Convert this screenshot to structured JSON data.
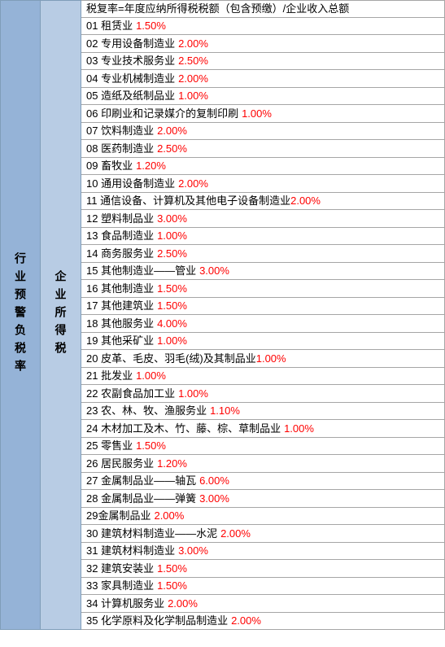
{
  "leftHeader": "行业预警负税率",
  "midHeader": "企业所得税",
  "formula": "税复率=年度应纳所得税税额（包含预缴）/企业收入总额",
  "colors": {
    "leftBg": "#95b3d7",
    "midBg": "#b8cce4",
    "border": "#a6a6a6",
    "pct": "#ff0000",
    "text": "#000000"
  },
  "rows": [
    {
      "label": "01 租赁业",
      "pct": "1.50%",
      "gap": true
    },
    {
      "label": "02 专用设备制造业",
      "pct": "2.00%",
      "gap": true
    },
    {
      "label": "03 专业技术服务业",
      "pct": "2.50%",
      "gap": true
    },
    {
      "label": "04 专业机械制造业",
      "pct": "2.00%",
      "gap": true
    },
    {
      "label": "05 造纸及纸制品业",
      "pct": "1.00%",
      "gap": true
    },
    {
      "label": "06 印刷业和记录媒介的复制印刷",
      "pct": "1.00%",
      "gap": true
    },
    {
      "label": "07 饮料制造业",
      "pct": "2.00%",
      "gap": true
    },
    {
      "label": "08 医药制造业",
      "pct": "2.50%",
      "gap": true
    },
    {
      "label": "09 畜牧业",
      "pct": "1.20%",
      "gap": true
    },
    {
      "label": "10 通用设备制造业",
      "pct": "2.00%",
      "gap": true
    },
    {
      "label": "11 通信设备、计算机及其他电子设备制造业",
      "pct": "2.00%",
      "gap": false
    },
    {
      "label": "12 塑料制品业",
      "pct": "3.00%",
      "gap": true
    },
    {
      "label": "13 食品制造业",
      "pct": "1.00%",
      "gap": true
    },
    {
      "label": "14 商务服务业",
      "pct": "2.50%",
      "gap": true
    },
    {
      "label": "15 其他制造业——管业",
      "pct": "3.00%",
      "gap": true
    },
    {
      "label": "16 其他制造业",
      "pct": "1.50%",
      "gap": true
    },
    {
      "label": "17 其他建筑业",
      "pct": "1.50%",
      "gap": true
    },
    {
      "label": "18 其他服务业",
      "pct": "4.00%",
      "gap": true
    },
    {
      "label": "19 其他采矿业",
      "pct": "1.00%",
      "gap": true
    },
    {
      "label": "20 皮革、毛皮、羽毛(绒)及其制品业",
      "pct": "1.00%",
      "gap": false
    },
    {
      "label": "21 批发业",
      "pct": "1.00%",
      "gap": true
    },
    {
      "label": "22 农副食品加工业",
      "pct": "1.00%",
      "gap": true
    },
    {
      "label": "23 农、林、牧、渔服务业",
      "pct": "1.10%",
      "gap": true
    },
    {
      "label": "24 木材加工及木、竹、藤、棕、草制品业",
      "pct": "1.00%",
      "gap": true
    },
    {
      "label": "25 零售业",
      "pct": "1.50%",
      "gap": true
    },
    {
      "label": "26 居民服务业",
      "pct": "1.20%",
      "gap": true
    },
    {
      "label": "27 金属制品业——轴瓦",
      "pct": "6.00%",
      "gap": true
    },
    {
      "label": "28 金属制品业——弹簧",
      "pct": "3.00%",
      "gap": true
    },
    {
      "label": "29金属制品业",
      "pct": "2.00%",
      "gap": true
    },
    {
      "label": "30 建筑材料制造业——水泥",
      "pct": "2.00%",
      "gap": true
    },
    {
      "label": "31 建筑材料制造业",
      "pct": "3.00%",
      "gap": true
    },
    {
      "label": "32 建筑安装业",
      "pct": "1.50%",
      "gap": true
    },
    {
      "label": "33 家具制造业",
      "pct": "1.50%",
      "gap": true
    },
    {
      "label": "34 计算机服务业",
      "pct": "2.00%",
      "gap": true
    },
    {
      "label": "35 化学原料及化学制品制造业",
      "pct": "2.00%",
      "gap": true
    }
  ]
}
